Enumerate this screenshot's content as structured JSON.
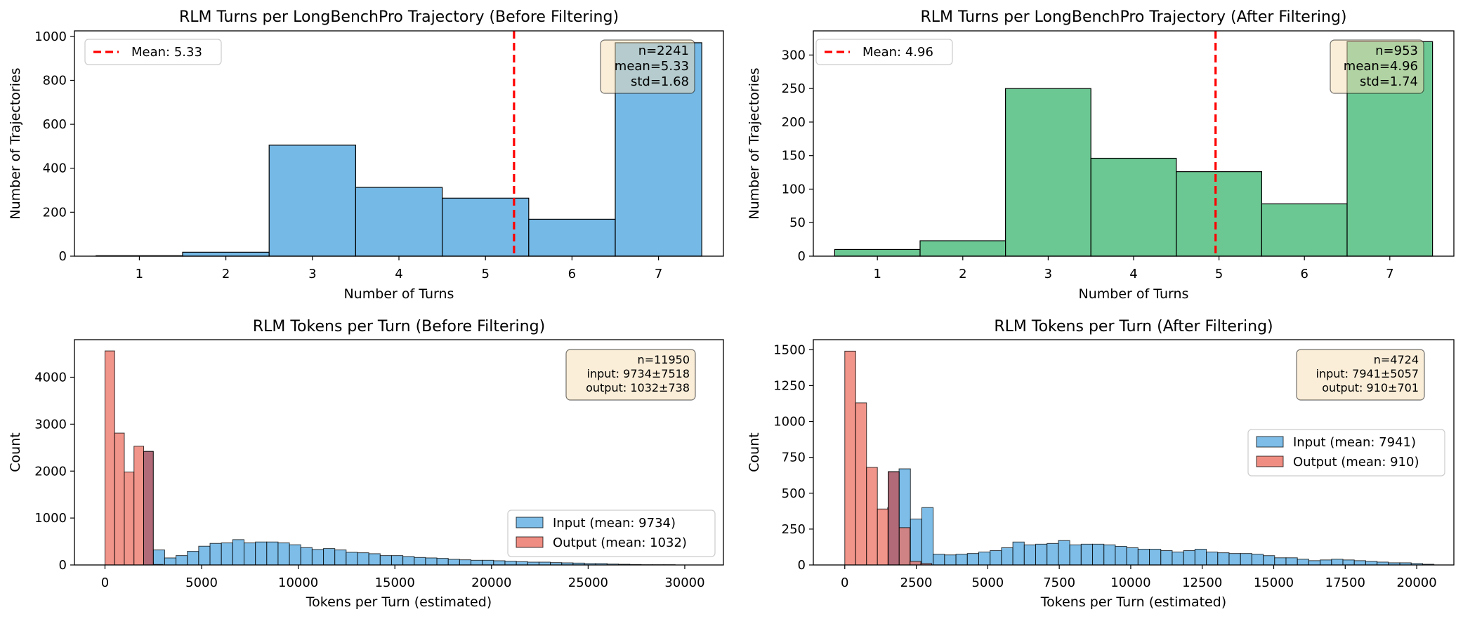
{
  "chart_data": [
    {
      "type": "bar",
      "title": "RLM Turns per LongBenchPro Trajectory (Before Filtering)",
      "xlabel": "Number of Turns",
      "ylabel": "Number of Trajectories",
      "xlim": [
        0.25,
        7.75
      ],
      "ylim": [
        0,
        1025
      ],
      "xticks": [
        1,
        2,
        3,
        4,
        5,
        6,
        7
      ],
      "yticks": [
        0,
        200,
        400,
        600,
        800,
        1000
      ],
      "bar_color": "#5DADE2",
      "categories": [
        1,
        2,
        3,
        4,
        5,
        6,
        7
      ],
      "values": [
        2,
        18,
        505,
        313,
        264,
        168,
        971
      ],
      "mean_line": {
        "x": 5.33,
        "label": "Mean: 5.33",
        "color": "#FF0000"
      },
      "stats": [
        "n=2241",
        "mean=5.33",
        "std=1.68"
      ]
    },
    {
      "type": "bar",
      "title": "RLM Turns per LongBenchPro Trajectory (After Filtering)",
      "xlabel": "Number of Turns",
      "ylabel": "Number of Trajectories",
      "xlim": [
        0.25,
        7.75
      ],
      "ylim": [
        0,
        336
      ],
      "xticks": [
        1,
        2,
        3,
        4,
        5,
        6,
        7
      ],
      "yticks": [
        0,
        50,
        100,
        150,
        200,
        250,
        300
      ],
      "bar_color": "#52BE80",
      "categories": [
        1,
        2,
        3,
        4,
        5,
        6,
        7
      ],
      "values": [
        10,
        23,
        250,
        146,
        126,
        78,
        320
      ],
      "mean_line": {
        "x": 4.96,
        "label": "Mean: 4.96",
        "color": "#FF0000"
      },
      "stats": [
        "n=953",
        "mean=4.96",
        "std=1.74"
      ]
    },
    {
      "type": "bar",
      "title": "RLM Tokens per Turn (Before Filtering)",
      "xlabel": "Tokens per Turn (estimated)",
      "ylabel": "Count",
      "xlim": [
        -1580,
        32000
      ],
      "ylim": [
        0,
        4800
      ],
      "xticks": [
        0,
        5000,
        10000,
        15000,
        20000,
        25000,
        30000
      ],
      "yticks": [
        0,
        1000,
        2000,
        3000,
        4000
      ],
      "series": [
        {
          "name": "Input (mean: 9734)",
          "color": "#5DADE2",
          "bin_start": 2500,
          "bin_width": 587,
          "values": [
            320,
            150,
            200,
            290,
            400,
            460,
            470,
            540,
            470,
            490,
            490,
            470,
            430,
            370,
            330,
            350,
            320,
            270,
            260,
            240,
            200,
            200,
            180,
            160,
            150,
            140,
            120,
            110,
            100,
            100,
            90,
            80,
            70,
            60,
            60,
            50,
            45,
            40,
            30,
            30,
            20,
            15,
            10,
            5,
            5,
            5
          ]
        },
        {
          "name": "Output (mean: 1032)",
          "color": "#EC7063",
          "bin_start": 0,
          "bin_width": 500,
          "values": [
            4560,
            2810,
            1980,
            2530,
            60,
            10
          ]
        }
      ],
      "overlap": {
        "bin_start": 2000,
        "bin_width": 500,
        "value": 2420
      },
      "stats": [
        "n=11950",
        "input: 9734±7518",
        "output: 1032±738"
      ]
    },
    {
      "type": "bar",
      "title": "RLM Tokens per Turn (After Filtering)",
      "xlabel": "Tokens per Turn (estimated)",
      "ylabel": "Count",
      "xlim": [
        -1100,
        21300
      ],
      "ylim": [
        0,
        1570
      ],
      "xticks": [
        0,
        2500,
        5000,
        7500,
        10000,
        12500,
        15000,
        17500,
        20000
      ],
      "yticks": [
        0,
        250,
        500,
        750,
        1000,
        1250,
        1500
      ],
      "series": [
        {
          "name": "Input (mean: 7941)",
          "color": "#5DADE2",
          "bin_start": 1500,
          "bin_width": 398,
          "values": [
            400,
            670,
            320,
            400,
            75,
            70,
            75,
            80,
            90,
            100,
            120,
            160,
            140,
            145,
            150,
            170,
            140,
            145,
            145,
            140,
            130,
            120,
            110,
            110,
            100,
            90,
            100,
            110,
            90,
            85,
            80,
            80,
            75,
            65,
            50,
            50,
            40,
            30,
            35,
            40,
            35,
            30,
            25,
            20,
            15,
            15,
            10,
            5
          ]
        },
        {
          "name": "Output (mean: 910)",
          "color": "#EC7063",
          "bin_start": 0,
          "bin_width": 380,
          "values": [
            1490,
            1130,
            680,
            390,
            650,
            260,
            25,
            10
          ]
        }
      ],
      "overlap": {
        "bin_start": 1520,
        "bin_width": 380,
        "value": 650
      },
      "stats": [
        "n=4724",
        "input: 7941±5057",
        "output: 910±701"
      ]
    }
  ]
}
